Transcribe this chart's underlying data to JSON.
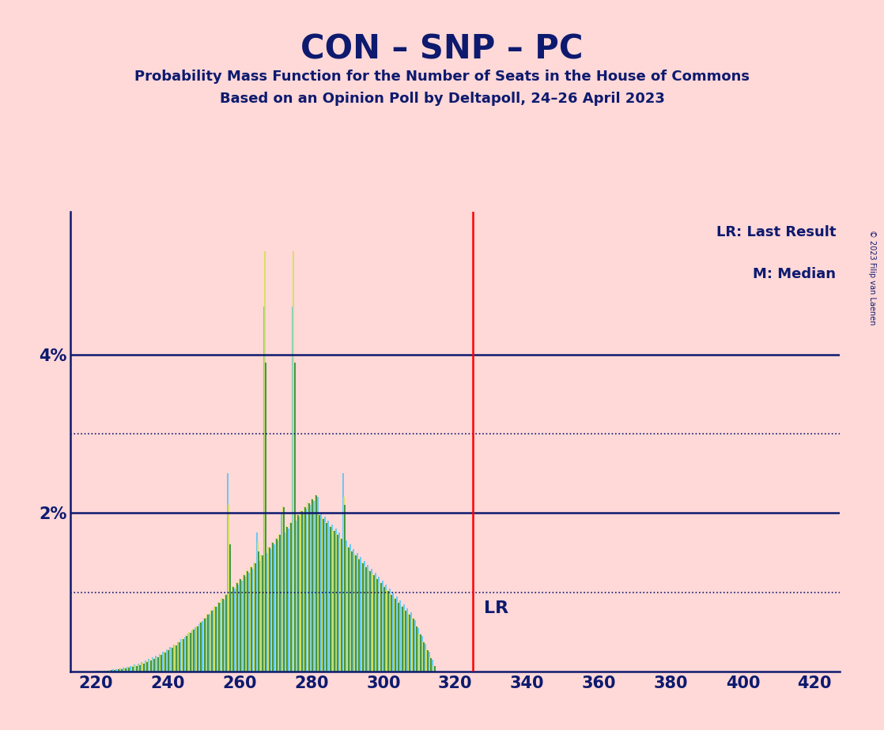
{
  "title": "CON – SNP – PC",
  "subtitle1": "Probability Mass Function for the Number of Seats in the House of Commons",
  "subtitle2": "Based on an Opinion Poll by Deltapoll, 24–26 April 2023",
  "copyright": "© 2023 Filip van Laenen",
  "background_color": "#ffd8d8",
  "bar_colors": [
    "#5bc8f5",
    "#d4e157",
    "#388e3c"
  ],
  "lr_line_x": 325,
  "lr_label": "LR",
  "legend_lr": "LR: Last Result",
  "legend_m": "M: Median",
  "x_min": 213,
  "x_max": 427,
  "y_min": 0,
  "y_max": 0.058,
  "x_ticks": [
    220,
    240,
    260,
    280,
    300,
    320,
    340,
    360,
    380,
    400,
    420
  ],
  "y_ticks_solid": [
    0.02,
    0.04
  ],
  "y_ticks_dot": [
    0.01,
    0.03
  ],
  "y_tick_labels": {
    "0.02": "2%",
    "0.04": "4%"
  },
  "navy": "#0d1a6e",
  "seats": [
    220,
    221,
    222,
    223,
    224,
    225,
    226,
    227,
    228,
    229,
    230,
    231,
    232,
    233,
    234,
    235,
    236,
    237,
    238,
    239,
    240,
    241,
    242,
    243,
    244,
    245,
    246,
    247,
    248,
    249,
    250,
    251,
    252,
    253,
    254,
    255,
    256,
    257,
    258,
    259,
    260,
    261,
    262,
    263,
    264,
    265,
    266,
    267,
    268,
    269,
    270,
    271,
    272,
    273,
    274,
    275,
    276,
    277,
    278,
    279,
    280,
    281,
    282,
    283,
    284,
    285,
    286,
    287,
    288,
    289,
    290,
    291,
    292,
    293,
    294,
    295,
    296,
    297,
    298,
    299,
    300,
    301,
    302,
    303,
    304,
    305,
    306,
    307,
    308,
    309,
    310,
    311,
    312,
    313,
    314
  ],
  "pmf_cyan": [
    0.0001,
    0.0001,
    0.0001,
    0.0001,
    0.0002,
    0.0003,
    0.0003,
    0.0004,
    0.0005,
    0.0006,
    0.0007,
    0.0009,
    0.001,
    0.0012,
    0.0014,
    0.0016,
    0.0018,
    0.002,
    0.0022,
    0.0025,
    0.0028,
    0.0031,
    0.0034,
    0.0037,
    0.0041,
    0.0044,
    0.0048,
    0.0052,
    0.0056,
    0.006,
    0.0064,
    0.0068,
    0.0073,
    0.0078,
    0.0082,
    0.0087,
    0.0091,
    0.025,
    0.01,
    0.0105,
    0.011,
    0.0115,
    0.012,
    0.0125,
    0.013,
    0.0175,
    0.014,
    0.046,
    0.015,
    0.0155,
    0.016,
    0.0165,
    0.02,
    0.0175,
    0.018,
    0.046,
    0.019,
    0.0195,
    0.02,
    0.0205,
    0.021,
    0.0215,
    0.022,
    0.02,
    0.0195,
    0.019,
    0.0185,
    0.018,
    0.0175,
    0.025,
    0.0165,
    0.016,
    0.0155,
    0.015,
    0.0145,
    0.014,
    0.0135,
    0.013,
    0.0125,
    0.012,
    0.0115,
    0.011,
    0.0105,
    0.01,
    0.0095,
    0.009,
    0.0085,
    0.008,
    0.0075,
    0.0065,
    0.0055,
    0.0045,
    0.0035,
    0.0025,
    0.0015
  ],
  "pmf_yellow": [
    0.0001,
    0.0001,
    0.0001,
    0.0001,
    0.0002,
    0.0002,
    0.0003,
    0.0004,
    0.0005,
    0.0006,
    0.0007,
    0.0008,
    0.001,
    0.0011,
    0.0013,
    0.0015,
    0.0017,
    0.0019,
    0.0022,
    0.0025,
    0.0028,
    0.0031,
    0.0034,
    0.0038,
    0.0042,
    0.0046,
    0.005,
    0.0054,
    0.0058,
    0.0063,
    0.0068,
    0.0073,
    0.0078,
    0.0083,
    0.0088,
    0.0093,
    0.0098,
    0.021,
    0.0108,
    0.0113,
    0.0118,
    0.0123,
    0.0128,
    0.0133,
    0.0138,
    0.0163,
    0.0148,
    0.053,
    0.0158,
    0.0163,
    0.0168,
    0.0173,
    0.0208,
    0.0183,
    0.0188,
    0.053,
    0.0198,
    0.0203,
    0.0208,
    0.0213,
    0.0218,
    0.0223,
    0.0198,
    0.0193,
    0.0188,
    0.0183,
    0.0178,
    0.0173,
    0.0168,
    0.022,
    0.0158,
    0.0153,
    0.0148,
    0.0143,
    0.0138,
    0.0133,
    0.0128,
    0.0123,
    0.0118,
    0.0113,
    0.0108,
    0.0103,
    0.0098,
    0.0093,
    0.0088,
    0.0083,
    0.0078,
    0.0073,
    0.0068,
    0.0058,
    0.0048,
    0.0038,
    0.0028,
    0.0018,
    0.0008
  ],
  "pmf_green": [
    0.0001,
    0.0001,
    0.0001,
    0.0001,
    0.0002,
    0.0002,
    0.0003,
    0.0003,
    0.0004,
    0.0005,
    0.0006,
    0.0007,
    0.0008,
    0.001,
    0.0012,
    0.0014,
    0.0016,
    0.0018,
    0.0021,
    0.0024,
    0.0027,
    0.003,
    0.0033,
    0.0037,
    0.0041,
    0.0045,
    0.0049,
    0.0053,
    0.0057,
    0.0062,
    0.0067,
    0.0072,
    0.0077,
    0.0082,
    0.0087,
    0.0092,
    0.0097,
    0.016,
    0.0107,
    0.0112,
    0.0117,
    0.0122,
    0.0127,
    0.0132,
    0.0137,
    0.0152,
    0.0147,
    0.039,
    0.0157,
    0.0162,
    0.0167,
    0.0172,
    0.0207,
    0.0182,
    0.0187,
    0.039,
    0.0197,
    0.0202,
    0.0207,
    0.0212,
    0.0217,
    0.0222,
    0.0197,
    0.0192,
    0.0187,
    0.0182,
    0.0177,
    0.0172,
    0.0167,
    0.021,
    0.0157,
    0.0152,
    0.0147,
    0.0142,
    0.0137,
    0.0132,
    0.0127,
    0.0122,
    0.0117,
    0.0112,
    0.0107,
    0.0102,
    0.0097,
    0.0092,
    0.0087,
    0.0082,
    0.0077,
    0.0072,
    0.0067,
    0.0057,
    0.0047,
    0.0037,
    0.0027,
    0.0017,
    0.0007
  ]
}
